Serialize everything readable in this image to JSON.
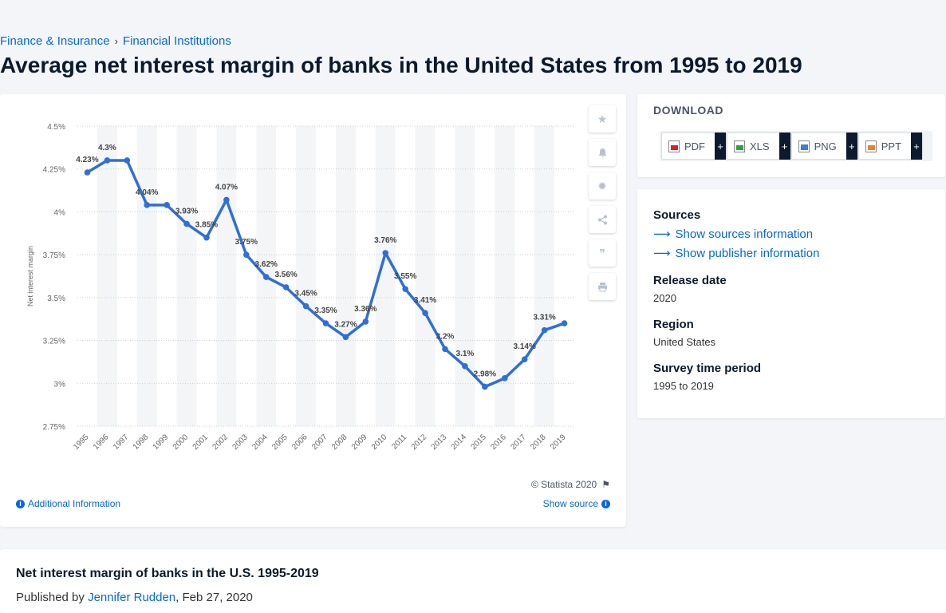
{
  "breadcrumb": [
    "Finance & Insurance",
    "Financial Institutions"
  ],
  "page_title": "Average net interest margin of banks in the United States from 1995 to 2019",
  "toolbar": {
    "icons": [
      "star-icon",
      "bell-icon",
      "gear-icon",
      "share-icon",
      "quote-icon",
      "print-icon"
    ]
  },
  "chart_footer": {
    "copyright": "© Statista 2020",
    "additional_info": "Additional Information",
    "show_source": "Show source"
  },
  "download": {
    "title": "DOWNLOAD",
    "buttons": [
      {
        "label": "PDF",
        "icon": "pdf-file-icon"
      },
      {
        "label": "XLS",
        "icon": "xls-file-icon"
      },
      {
        "label": "PNG",
        "icon": "png-file-icon"
      },
      {
        "label": "PPT",
        "icon": "ppt-file-icon"
      }
    ],
    "plus": "+"
  },
  "info": {
    "sources_label": "Sources",
    "show_sources": "Show sources information",
    "show_publisher": "Show publisher information",
    "release_date_label": "Release date",
    "release_date": "2020",
    "region_label": "Region",
    "region": "United States",
    "survey_label": "Survey time period",
    "survey": "1995 to 2019"
  },
  "bottom": {
    "title": "Net interest margin of banks in the U.S. 1995-2019",
    "published_prefix": "Published by",
    "author": "Jennifer Rudden",
    "date": ", Feb 27, 2020"
  },
  "chart_data": {
    "type": "line",
    "x": [
      "1995",
      "1996",
      "1997",
      "1998",
      "1999",
      "2000",
      "2001",
      "2002",
      "2003",
      "2004",
      "2005",
      "2006",
      "2007",
      "2008",
      "2009",
      "2010",
      "2011",
      "2012",
      "2013",
      "2014",
      "2015",
      "2016",
      "2017",
      "2018",
      "2019"
    ],
    "values": [
      4.23,
      4.3,
      4.3,
      4.04,
      4.04,
      3.93,
      3.85,
      4.07,
      3.75,
      3.62,
      3.56,
      3.45,
      3.35,
      3.27,
      3.36,
      3.76,
      3.55,
      3.41,
      3.2,
      3.1,
      2.98,
      3.03,
      3.14,
      3.31,
      3.35
    ],
    "labels": [
      "4.23%",
      "4.3%",
      "",
      "4.04%",
      "",
      "3.93%",
      "3.85%",
      "4.07%",
      "3.75%",
      "3.62%",
      "3.56%",
      "3.45%",
      "3.35%",
      "3.27%",
      "3.36%",
      "3.76%",
      "3.55%",
      "3.41%",
      "3.2%",
      "3.1%",
      "2.98%",
      "",
      "3.14%",
      "3.31%",
      ""
    ],
    "ylabel": "Net interest margin",
    "yticks": [
      2.75,
      3,
      3.25,
      3.5,
      3.75,
      4,
      4.25,
      4.5
    ],
    "ytick_labels": [
      "2.75%",
      "3%",
      "3.25%",
      "3.5%",
      "3.75%",
      "4%",
      "4.25%",
      "4.5%"
    ],
    "ylim": [
      2.75,
      4.5
    ],
    "grid": true,
    "color": "#2f6fd6"
  }
}
